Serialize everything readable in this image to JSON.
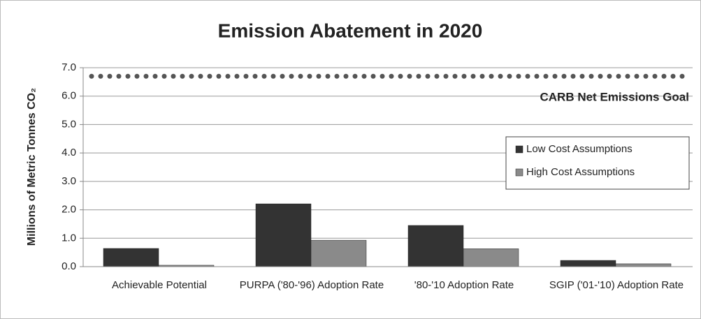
{
  "chart_data": {
    "type": "bar",
    "title": "Emission Abatement in 2020",
    "y_label": "Millions of Metric Tonnes CO₂",
    "categories": [
      "Achievable Potential",
      "PURPA ('80-'96) Adoption Rate",
      "'80-'10 Adoption Rate",
      "SGIP ('01-'10) Adoption Rate"
    ],
    "series": [
      {
        "name": "Low Cost Assumptions",
        "color": "#333333",
        "values": [
          0.64,
          2.21,
          1.45,
          0.22
        ]
      },
      {
        "name": "High Cost Assumptions",
        "color": "#8a8a8a",
        "values": [
          0.05,
          0.93,
          0.63,
          0.1
        ]
      }
    ],
    "ylim": [
      0,
      7
    ],
    "yticks": [
      {
        "value": 0,
        "label": "0.0"
      },
      {
        "value": 1,
        "label": "1.0"
      },
      {
        "value": 2,
        "label": "2.0"
      },
      {
        "value": 3,
        "label": "3.0"
      },
      {
        "value": 4,
        "label": "4.0"
      },
      {
        "value": 5,
        "label": "5.0"
      },
      {
        "value": 6,
        "label": "6.0"
      },
      {
        "value": 7,
        "label": "7.0"
      }
    ],
    "grid": true,
    "goal": {
      "value": 6.7,
      "label": "CARB Net Emissions Goal",
      "color": "#555555"
    },
    "legend": "right"
  }
}
